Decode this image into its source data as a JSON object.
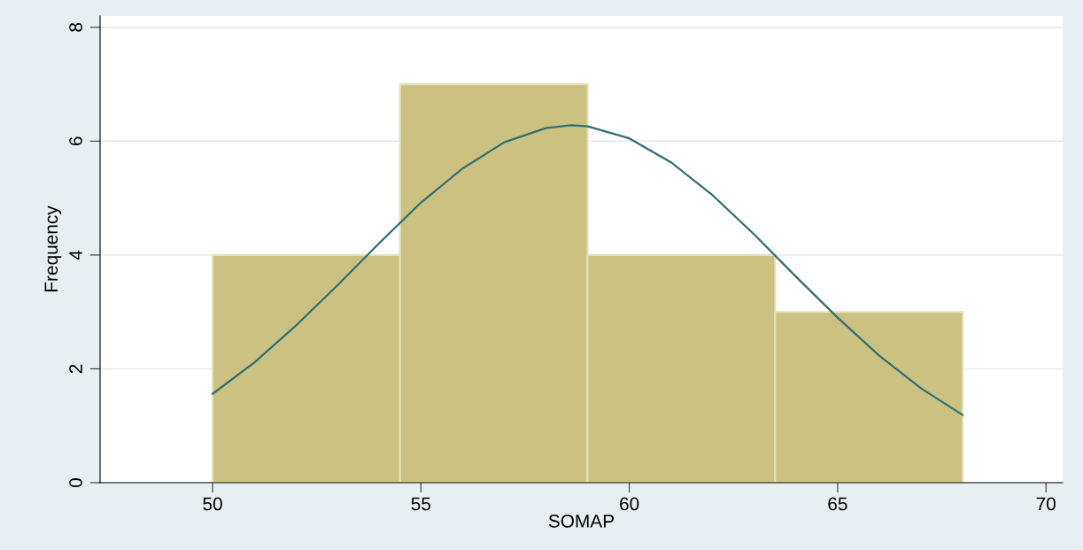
{
  "chart_data": {
    "type": "histogram",
    "xlabel": "SOMAP",
    "ylabel": "Frequency",
    "bins": [
      50,
      54.5,
      59,
      63.5,
      68
    ],
    "values": [
      4,
      7,
      4,
      3
    ],
    "color": "#cbc282",
    "series": [
      {
        "type": "line",
        "color": "#2f6f70",
        "x": [
          50,
          51,
          52,
          53,
          54,
          55,
          56,
          57,
          58,
          58.6,
          59,
          60,
          61,
          62,
          63,
          64,
          65,
          66,
          67,
          68
        ],
        "values": [
          1.56,
          2.11,
          2.76,
          3.47,
          4.21,
          4.92,
          5.52,
          5.98,
          6.23,
          6.28,
          6.26,
          6.05,
          5.63,
          5.05,
          4.36,
          3.62,
          2.9,
          2.23,
          1.66,
          1.19
        ]
      }
    ],
    "xlim": [
      47.3,
      70.4
    ],
    "xticks": [
      50,
      55,
      60,
      65,
      70
    ],
    "ylim": [
      0,
      8.2
    ],
    "yticks": [
      0,
      2,
      4,
      6,
      8
    ],
    "grid": "y",
    "legend": false
  }
}
